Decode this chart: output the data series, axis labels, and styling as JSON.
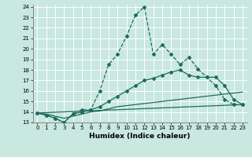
{
  "xlabel": "Humidex (Indice chaleur)",
  "xlim": [
    -0.5,
    23.5
  ],
  "ylim": [
    13,
    24.2
  ],
  "yticks": [
    13,
    14,
    15,
    16,
    17,
    18,
    19,
    20,
    21,
    22,
    23,
    24
  ],
  "xticks": [
    0,
    1,
    2,
    3,
    4,
    5,
    6,
    7,
    8,
    9,
    10,
    11,
    12,
    13,
    14,
    15,
    16,
    17,
    18,
    19,
    20,
    21,
    22,
    23
  ],
  "bg_color": "#c8e8e0",
  "line_color": "#1e6b5e",
  "grid_color": "#ffffff",
  "line1_x": [
    0,
    1,
    2,
    3,
    4,
    5,
    6,
    7,
    8,
    9,
    10,
    11,
    12,
    13,
    14,
    15,
    16,
    17,
    18,
    19,
    20,
    21,
    22,
    23
  ],
  "line1_y": [
    13.9,
    13.7,
    13.4,
    13.0,
    13.8,
    14.2,
    14.2,
    16.0,
    18.5,
    19.5,
    21.2,
    23.2,
    24.0,
    19.5,
    20.4,
    19.5,
    18.5,
    19.2,
    18.1,
    17.3,
    16.5,
    15.2,
    14.7,
    14.7
  ],
  "line2_x": [
    0,
    1,
    2,
    3,
    4,
    5,
    6,
    7,
    8,
    9,
    10,
    11,
    12,
    13,
    14,
    15,
    16,
    17,
    18,
    19,
    20,
    21,
    22,
    23
  ],
  "line2_y": [
    13.9,
    13.7,
    13.4,
    13.0,
    13.8,
    14.0,
    14.2,
    14.5,
    15.0,
    15.5,
    16.0,
    16.5,
    17.0,
    17.2,
    17.5,
    17.8,
    18.0,
    17.5,
    17.3,
    17.3,
    17.3,
    16.5,
    15.2,
    14.7
  ],
  "line3_x": [
    0,
    23
  ],
  "line3_y": [
    13.9,
    14.7
  ],
  "line4_x": [
    0,
    1,
    2,
    3,
    4,
    5,
    6,
    7,
    8,
    9,
    10,
    11,
    12,
    13,
    14,
    15,
    16,
    17,
    18,
    19,
    20,
    21,
    22,
    23
  ],
  "line4_y": [
    13.9,
    13.8,
    13.6,
    13.4,
    13.6,
    13.8,
    14.0,
    14.1,
    14.3,
    14.5,
    14.6,
    14.7,
    14.8,
    14.9,
    15.0,
    15.1,
    15.2,
    15.3,
    15.4,
    15.5,
    15.6,
    15.7,
    15.8,
    15.9
  ]
}
